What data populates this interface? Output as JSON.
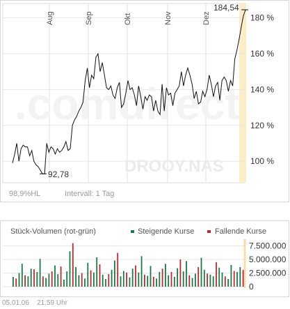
{
  "watermark": {
    "logo": ".comdirect",
    "ticker": "DROOY.NAS"
  },
  "months": [
    "Aug",
    "Sep",
    "Okt",
    "Nov",
    "Dez"
  ],
  "price_axis_labels": [
    "180 %",
    "160 %",
    "140 %",
    "120 %",
    "100 %"
  ],
  "price_annotations": {
    "low": "92,78",
    "high": "184,54"
  },
  "info": {
    "hl": "98,9%HL",
    "interval": "Intervall: 1 Tag"
  },
  "volume": {
    "title": "Stück-Volumen (rot-grün)",
    "legend_up": "Steigende Kurse",
    "legend_down": "Fallende Kurse",
    "axis_labels": [
      "7.500.000",
      "5.000.000",
      "2.500.000",
      "0"
    ],
    "up_color": "#1a7a46",
    "down_color": "#c0282d"
  },
  "footer": {
    "date": "05.01.06",
    "time": "21:59 Uhr"
  },
  "chart_data": [
    {
      "type": "line",
      "title": "",
      "xlabel": "",
      "ylabel": "",
      "ylim": [
        88,
        188
      ],
      "y_unit": "%",
      "x_ticks": [
        "Aug",
        "Sep",
        "Okt",
        "Nov",
        "Dez"
      ],
      "series": [
        {
          "values": [
            99,
            104,
            110,
            100,
            107,
            109,
            108,
            108,
            103,
            106,
            100,
            98,
            97,
            95,
            93,
            93,
            110,
            105,
            108,
            107,
            104,
            107,
            105,
            106,
            108,
            111,
            106,
            107,
            120,
            123,
            125,
            128,
            130,
            133,
            145,
            152,
            141,
            148,
            146,
            158,
            160,
            150,
            155,
            148,
            141,
            140,
            142,
            137,
            135,
            141,
            144,
            130,
            132,
            138,
            145,
            140,
            141,
            137,
            131,
            142,
            136,
            129,
            136,
            134,
            137,
            136,
            128,
            134,
            128,
            126,
            143,
            128,
            141,
            137,
            138,
            131,
            138,
            140,
            142,
            150,
            142,
            148,
            152,
            148,
            143,
            135,
            139,
            132,
            133,
            139,
            136,
            140,
            148,
            143,
            136,
            142,
            144,
            134,
            145,
            147,
            145,
            139,
            145,
            142,
            157,
            162,
            168,
            175,
            181,
            184.5
          ]
        }
      ]
    },
    {
      "type": "bar",
      "title": "Stück-Volumen (rot-grün)",
      "ylim": [
        0,
        8200000
      ],
      "series": [
        {
          "name": "Steigende Kurse",
          "values": [
            1800000,
            0,
            2500000,
            4200000,
            0,
            1900000,
            3300000,
            0,
            2700000,
            5100000,
            0,
            1600000,
            2400000,
            0,
            3900000,
            2300000,
            0,
            1300000,
            2800000,
            6500000,
            0,
            3600000,
            2100000,
            0,
            1500000,
            4400000,
            0,
            2600000,
            5400000,
            0,
            2200000,
            1400000,
            0,
            3100000,
            4800000,
            0,
            1900000,
            2900000,
            0,
            1700000,
            3300000,
            0,
            2600000,
            5600000,
            0,
            2000000,
            3800000,
            0,
            1500000,
            2700000,
            0,
            4200000,
            2100000,
            0,
            1800000,
            3400000,
            0,
            2800000,
            4700000,
            0,
            1600000,
            2400000,
            0,
            5300000,
            3100000,
            0,
            2200000,
            1900000,
            0,
            3500000,
            2600000,
            0,
            1400000,
            4000000,
            0,
            2700000,
            3600000,
            0
          ]
        },
        {
          "name": "Fallende Kurse",
          "values": [
            0,
            1500000,
            0,
            0,
            2100000,
            0,
            0,
            3200000,
            0,
            0,
            1900000,
            0,
            0,
            2800000,
            0,
            0,
            3700000,
            0,
            0,
            0,
            8000000,
            0,
            0,
            2500000,
            0,
            0,
            3000000,
            0,
            0,
            4100000,
            0,
            0,
            2300000,
            0,
            0,
            6200000,
            0,
            0,
            2600000,
            0,
            0,
            3900000,
            0,
            0,
            2200000,
            0,
            0,
            1800000,
            0,
            0,
            3300000,
            0,
            0,
            2700000,
            0,
            0,
            5000000,
            0,
            0,
            2100000,
            0,
            0,
            3600000,
            0,
            0,
            2400000,
            0,
            0,
            4500000,
            0,
            0,
            1900000,
            0,
            0,
            2900000,
            0,
            0,
            3100000
          ]
        }
      ]
    }
  ]
}
